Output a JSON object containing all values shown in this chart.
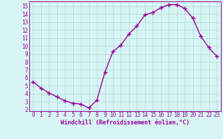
{
  "x": [
    0,
    1,
    2,
    3,
    4,
    5,
    6,
    7,
    8,
    9,
    10,
    11,
    12,
    13,
    14,
    15,
    16,
    17,
    18,
    19,
    20,
    21,
    22,
    23
  ],
  "y": [
    5.5,
    4.7,
    4.1,
    3.6,
    3.1,
    2.8,
    2.7,
    2.2,
    3.2,
    6.7,
    9.3,
    10.1,
    11.5,
    12.5,
    13.9,
    14.2,
    14.8,
    15.2,
    15.2,
    14.7,
    13.5,
    11.2,
    9.8,
    8.7
  ],
  "line_color": "#990099",
  "marker": "+",
  "markersize": 4,
  "linewidth": 1.0,
  "bg_color": "#d8f5f5",
  "grid_color": "#b0d8d8",
  "xlabel": "Windchill (Refroidissement éolien,°C)",
  "tick_color": "#990099",
  "xlim": [
    -0.5,
    23.5
  ],
  "ylim": [
    1.8,
    15.6
  ],
  "yticks": [
    2,
    3,
    4,
    5,
    6,
    7,
    8,
    9,
    10,
    11,
    12,
    13,
    14,
    15
  ],
  "xticks": [
    0,
    1,
    2,
    3,
    4,
    5,
    6,
    7,
    8,
    9,
    10,
    11,
    12,
    13,
    14,
    15,
    16,
    17,
    18,
    19,
    20,
    21,
    22,
    23
  ],
  "font_size": 5.5,
  "xlabel_font_size": 6.0
}
